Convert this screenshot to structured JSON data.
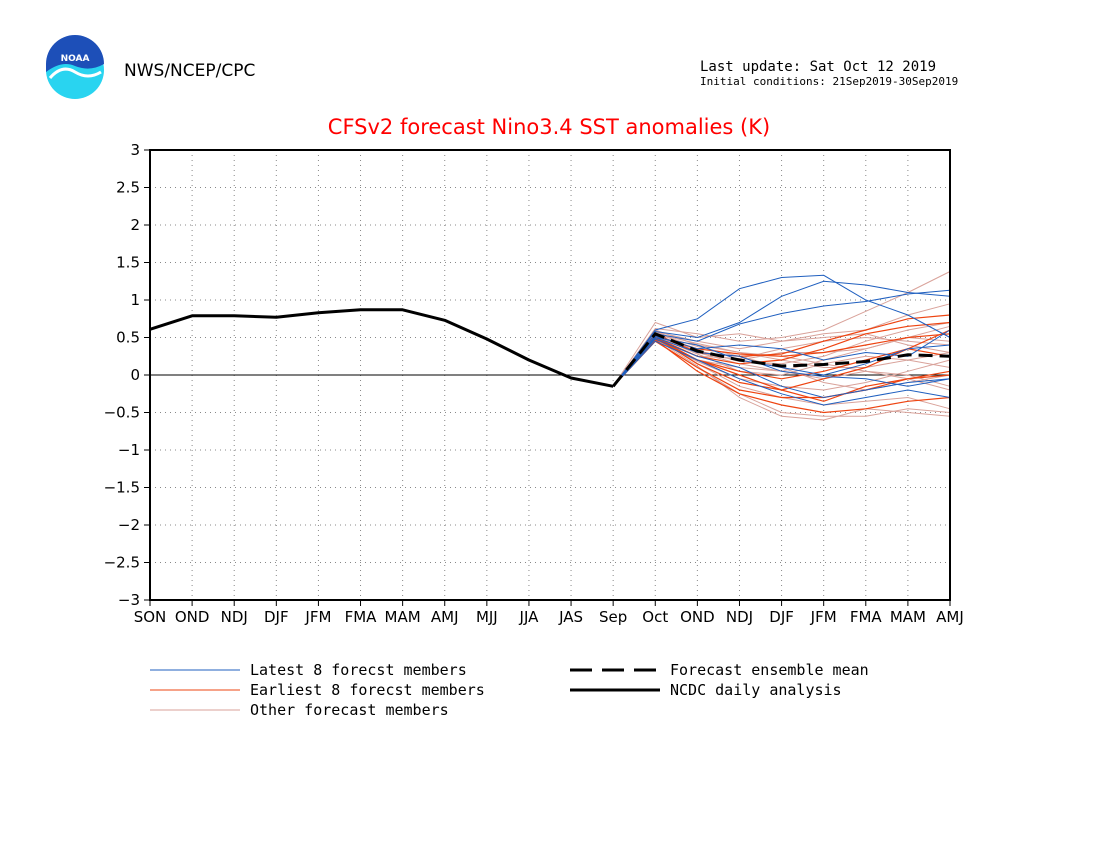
{
  "header": {
    "logo_text": "NOAA",
    "org": "NWS/NCEP/CPC",
    "last_update": "Last update: Sat Oct 12 2019",
    "initial_conditions": "Initial conditions: 21Sep2019-30Sep2019"
  },
  "colors": {
    "title": "#ff0000",
    "latest": "#1f5fbf",
    "earliest": "#ee4411",
    "other": "#d9a29a",
    "analysis": "#000000",
    "logo_blue": "#1d4fb8",
    "logo_cyan": "#29d4f0"
  },
  "legend": {
    "latest": "Latest 8 forecst members",
    "earliest": "Earliest 8 forecst members",
    "other": "Other forecast members",
    "mean": "Forecast ensemble mean",
    "analysis": "NCDC daily analysis"
  },
  "chart_data": {
    "type": "line",
    "title": "CFSv2 forecast Nino3.4 SST anomalies (K)",
    "xlabel": "",
    "ylabel": "",
    "categories": [
      "SON",
      "OND",
      "NDJ",
      "DJF",
      "JFM",
      "FMA",
      "MAM",
      "AMJ",
      "MJJ",
      "JJA",
      "JAS",
      "Sep",
      "Oct",
      "OND",
      "NDJ",
      "DJF",
      "JFM",
      "FMA",
      "MAM",
      "AMJ"
    ],
    "ylim": [
      -3,
      3
    ],
    "yticks": [
      3,
      2.5,
      2,
      1.5,
      1,
      0.5,
      0,
      -0.5,
      -1,
      -1.5,
      -2,
      -2.5,
      -3
    ],
    "ytick_labels": [
      "3",
      "2.5",
      "2",
      "1.5",
      "1",
      "0.5",
      "0",
      "−0.5",
      "−1",
      "−1.5",
      "−2",
      "−2.5",
      "−3"
    ],
    "grid": "dotted",
    "zero_line": true,
    "forecast_start_index": 11,
    "analysis": [
      0.61,
      0.79,
      0.79,
      0.77,
      0.83,
      0.87,
      0.87,
      0.73,
      0.48,
      0.2,
      -0.04,
      -0.15
    ],
    "ensemble_mean": [
      -0.15,
      0.55,
      0.32,
      0.2,
      0.12,
      0.14,
      0.18,
      0.27,
      0.25
    ],
    "latest_members": [
      [
        -0.15,
        0.6,
        0.75,
        1.15,
        1.3,
        1.33,
        1.0,
        0.8,
        0.5
      ],
      [
        -0.15,
        0.58,
        0.5,
        0.7,
        1.05,
        1.25,
        1.2,
        1.1,
        1.05
      ],
      [
        -0.15,
        0.55,
        0.45,
        0.68,
        0.82,
        0.92,
        0.98,
        1.08,
        1.13
      ],
      [
        -0.15,
        0.5,
        0.3,
        0.25,
        0.05,
        -0.02,
        -0.05,
        -0.15,
        -0.05
      ],
      [
        -0.15,
        0.48,
        0.25,
        0.1,
        -0.15,
        -0.3,
        -0.2,
        -0.1,
        -0.05
      ],
      [
        -0.15,
        0.45,
        0.2,
        -0.05,
        -0.25,
        -0.4,
        -0.3,
        -0.2,
        -0.3
      ],
      [
        -0.15,
        0.52,
        0.35,
        0.4,
        0.35,
        0.2,
        0.3,
        0.25,
        0.6
      ],
      [
        -0.15,
        0.5,
        0.4,
        0.2,
        0.1,
        0.0,
        0.15,
        0.35,
        0.4
      ]
    ],
    "earliest_members": [
      [
        -0.15,
        0.45,
        0.1,
        -0.2,
        -0.3,
        -0.3,
        -0.2,
        -0.05,
        0.05
      ],
      [
        -0.15,
        0.5,
        0.2,
        0.0,
        -0.2,
        -0.35,
        -0.15,
        -0.05,
        0.0
      ],
      [
        -0.15,
        0.47,
        0.05,
        -0.25,
        -0.4,
        -0.5,
        -0.45,
        -0.35,
        -0.3
      ],
      [
        -0.15,
        0.55,
        0.3,
        0.25,
        0.28,
        0.45,
        0.6,
        0.75,
        0.8
      ],
      [
        -0.15,
        0.5,
        0.25,
        0.15,
        0.2,
        0.35,
        0.55,
        0.65,
        0.7
      ],
      [
        -0.15,
        0.52,
        0.35,
        0.28,
        0.25,
        0.3,
        0.4,
        0.5,
        0.55
      ],
      [
        -0.15,
        0.5,
        0.15,
        -0.1,
        -0.2,
        -0.05,
        0.1,
        0.35,
        0.6
      ],
      [
        -0.15,
        0.48,
        0.2,
        0.05,
        -0.05,
        0.05,
        0.2,
        0.35,
        0.25
      ]
    ],
    "other_members": [
      [
        -0.15,
        0.62,
        0.55,
        0.45,
        0.5,
        0.6,
        0.85,
        1.1,
        1.38
      ],
      [
        -0.15,
        0.58,
        0.45,
        0.35,
        0.45,
        0.55,
        0.6,
        0.8,
        0.95
      ],
      [
        -0.15,
        0.55,
        0.42,
        0.3,
        0.2,
        0.1,
        0.1,
        0.2,
        0.3
      ],
      [
        -0.15,
        0.5,
        0.15,
        -0.15,
        -0.3,
        -0.4,
        -0.35,
        -0.3,
        -0.45
      ],
      [
        -0.15,
        0.45,
        0.1,
        -0.25,
        -0.5,
        -0.55,
        -0.55,
        -0.45,
        -0.5
      ],
      [
        -0.15,
        0.48,
        0.12,
        -0.3,
        -0.55,
        -0.6,
        -0.45,
        -0.5,
        -0.55
      ],
      [
        -0.15,
        0.7,
        0.5,
        0.55,
        0.45,
        0.5,
        0.55,
        0.4,
        0.3
      ],
      [
        -0.15,
        0.6,
        0.3,
        0.2,
        0.3,
        0.3,
        0.35,
        0.5,
        0.65
      ],
      [
        -0.15,
        0.52,
        0.28,
        0.05,
        0.0,
        0.15,
        0.25,
        0.2,
        0.1
      ],
      [
        -0.15,
        0.55,
        0.38,
        0.25,
        0.1,
        -0.1,
        -0.2,
        -0.1,
        0.0
      ],
      [
        -0.15,
        0.5,
        0.2,
        0.1,
        0.05,
        0.2,
        0.35,
        0.5,
        0.45
      ],
      [
        -0.15,
        0.58,
        0.33,
        0.18,
        0.15,
        0.25,
        0.45,
        0.6,
        0.7
      ],
      [
        -0.15,
        0.47,
        0.18,
        -0.05,
        -0.15,
        -0.2,
        -0.1,
        0.05,
        0.2
      ],
      [
        -0.15,
        0.53,
        0.3,
        0.15,
        0.05,
        -0.05,
        0.05,
        0.0,
        -0.15
      ],
      [
        -0.15,
        0.5,
        0.25,
        0.22,
        0.35,
        0.45,
        0.5,
        0.45,
        0.4
      ],
      [
        -0.15,
        0.6,
        0.4,
        0.3,
        0.25,
        0.15,
        0.05,
        -0.05,
        -0.2
      ]
    ]
  }
}
